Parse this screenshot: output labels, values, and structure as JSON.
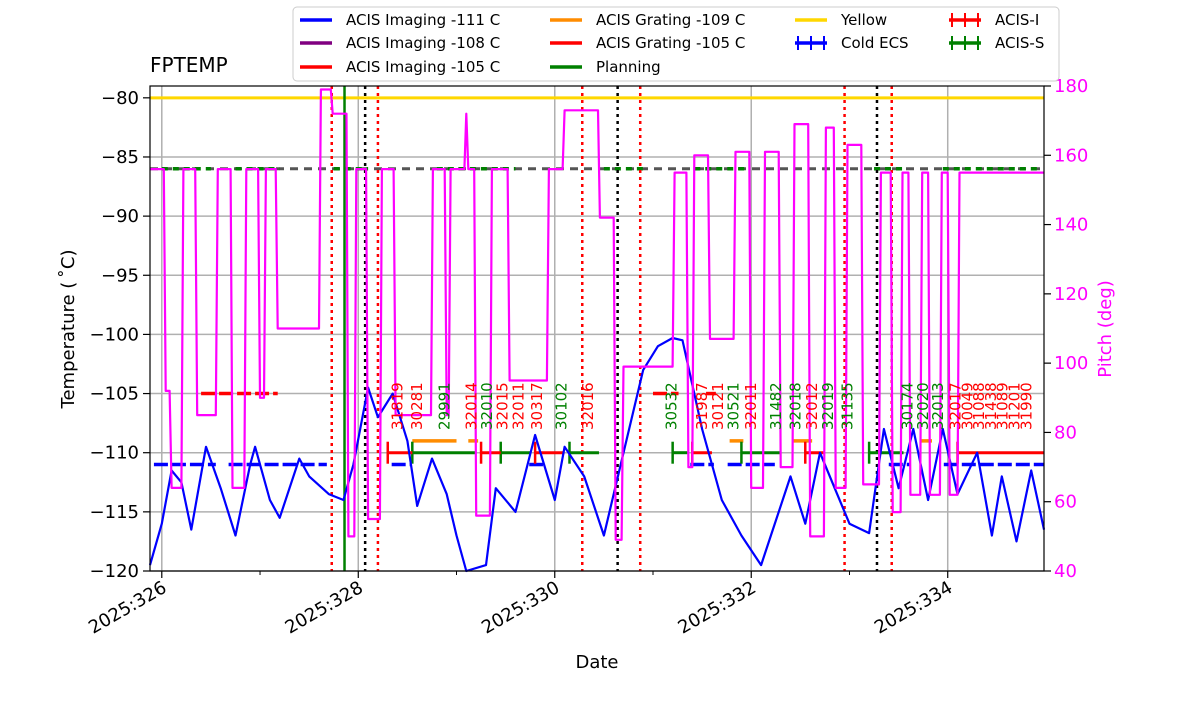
{
  "chart_data": {
    "type": "line",
    "title": "FPTEMP",
    "xlabel": "Date",
    "ylabel": "Temperature ($^\\circ$C)",
    "ylabel_display": "Temperature ( ˚C)",
    "y2label": "Pitch (deg)",
    "xlim": [
      325.88,
      334.98
    ],
    "ylim": [
      -120,
      -79
    ],
    "y2lim": [
      40,
      180
    ],
    "xticks": [
      {
        "value": 326,
        "label": "2025:326"
      },
      {
        "value": 328,
        "label": "2025:328"
      },
      {
        "value": 330,
        "label": "2025:330"
      },
      {
        "value": 332,
        "label": "2025:332"
      },
      {
        "value": 334,
        "label": "2025:334"
      }
    ],
    "yticks": [
      -120,
      -115,
      -110,
      -105,
      -100,
      -95,
      -90,
      -85,
      -80
    ],
    "yticklabels": [
      "−120",
      "−115",
      "−110",
      "−105",
      "−100",
      "−95",
      "−90",
      "−85",
      "−80"
    ],
    "y2ticks": [
      40,
      60,
      80,
      100,
      120,
      140,
      160,
      180
    ],
    "grid": true,
    "colors": {
      "blue": "#0000ff",
      "purple": "#800080",
      "red": "#ff0000",
      "orange": "#ff8c00",
      "green": "#008000",
      "yellow": "#ffd700",
      "magenta": "#ff00ff",
      "black": "#000000",
      "gray": "#555555"
    },
    "legend": {
      "placement": "top",
      "entries": [
        {
          "label": "ACIS Imaging -111 C",
          "color": "#0000ff",
          "style": "line"
        },
        {
          "label": "ACIS Imaging -108 C",
          "color": "#800080",
          "style": "line"
        },
        {
          "label": "ACIS Imaging -105 C",
          "color": "#ff0000",
          "style": "line"
        },
        {
          "label": "ACIS Grating -109 C",
          "color": "#ff8c00",
          "style": "line"
        },
        {
          "label": "ACIS Grating -105 C",
          "color": "#ff0000",
          "style": "line"
        },
        {
          "label": "Planning",
          "color": "#008000",
          "style": "line"
        },
        {
          "label": "Yellow",
          "color": "#ffd700",
          "style": "line"
        },
        {
          "label": "Cold ECS",
          "color": "#0000ff",
          "style": "errorbar"
        },
        {
          "label": "ACIS-I",
          "color": "#ff0000",
          "style": "errorbar"
        },
        {
          "label": "ACIS-S",
          "color": "#008000",
          "style": "errorbar"
        }
      ]
    },
    "series": [
      {
        "name": "FPTEMP",
        "axis": "left",
        "color": "#0000ff",
        "points": [
          [
            325.88,
            -119.5
          ],
          [
            326.0,
            -116
          ],
          [
            326.1,
            -111.5
          ],
          [
            326.2,
            -112.5
          ],
          [
            326.3,
            -116.5
          ],
          [
            326.45,
            -109.5
          ],
          [
            326.6,
            -113
          ],
          [
            326.75,
            -117
          ],
          [
            326.9,
            -111
          ],
          [
            326.95,
            -109.5
          ],
          [
            327.1,
            -114
          ],
          [
            327.2,
            -115.5
          ],
          [
            327.3,
            -113
          ],
          [
            327.4,
            -110.5
          ],
          [
            327.5,
            -112
          ],
          [
            327.7,
            -113.5
          ],
          [
            327.85,
            -114
          ],
          [
            327.95,
            -111
          ],
          [
            328.1,
            -104.5
          ],
          [
            328.2,
            -107
          ],
          [
            328.35,
            -105
          ],
          [
            328.5,
            -109
          ],
          [
            328.6,
            -114.5
          ],
          [
            328.75,
            -110.5
          ],
          [
            328.9,
            -113.5
          ],
          [
            329.0,
            -117
          ],
          [
            329.1,
            -120
          ],
          [
            329.3,
            -119.5
          ],
          [
            329.4,
            -113
          ],
          [
            329.6,
            -115
          ],
          [
            329.8,
            -108.5
          ],
          [
            330.0,
            -114
          ],
          [
            330.1,
            -109.5
          ],
          [
            330.3,
            -112
          ],
          [
            330.5,
            -117
          ],
          [
            330.7,
            -110
          ],
          [
            330.9,
            -103
          ],
          [
            331.05,
            -101
          ],
          [
            331.2,
            -100.3
          ],
          [
            331.3,
            -100.5
          ],
          [
            331.5,
            -108
          ],
          [
            331.7,
            -114
          ],
          [
            331.9,
            -117
          ],
          [
            332.1,
            -119.5
          ],
          [
            332.2,
            -117
          ],
          [
            332.4,
            -112
          ],
          [
            332.55,
            -116
          ],
          [
            332.7,
            -110
          ],
          [
            332.85,
            -113
          ],
          [
            333.0,
            -116
          ],
          [
            333.2,
            -116.8
          ],
          [
            333.35,
            -108
          ],
          [
            333.5,
            -113
          ],
          [
            333.65,
            -108
          ],
          [
            333.8,
            -114
          ],
          [
            333.95,
            -108
          ],
          [
            334.1,
            -113.5
          ],
          [
            334.3,
            -110
          ],
          [
            334.45,
            -117
          ],
          [
            334.55,
            -112
          ],
          [
            334.7,
            -117.5
          ],
          [
            334.85,
            -111.5
          ],
          [
            334.98,
            -116.5
          ]
        ]
      },
      {
        "name": "Pitch",
        "axis": "right",
        "color": "#ff00ff",
        "points": [
          [
            325.88,
            156
          ],
          [
            326.02,
            156
          ],
          [
            326.04,
            92
          ],
          [
            326.08,
            92
          ],
          [
            326.1,
            64
          ],
          [
            326.2,
            64
          ],
          [
            326.22,
            156
          ],
          [
            326.34,
            156
          ],
          [
            326.36,
            85
          ],
          [
            326.55,
            85
          ],
          [
            326.57,
            156
          ],
          [
            326.7,
            156
          ],
          [
            326.72,
            64
          ],
          [
            326.84,
            64
          ],
          [
            326.86,
            156
          ],
          [
            326.98,
            156
          ],
          [
            327.0,
            90
          ],
          [
            327.04,
            90
          ],
          [
            327.06,
            156
          ],
          [
            327.16,
            156
          ],
          [
            327.18,
            110
          ],
          [
            327.6,
            110
          ],
          [
            327.62,
            179
          ],
          [
            327.72,
            179
          ],
          [
            327.74,
            172
          ],
          [
            327.88,
            172
          ],
          [
            327.9,
            50
          ],
          [
            327.96,
            50
          ],
          [
            327.98,
            156
          ],
          [
            328.08,
            156
          ],
          [
            328.1,
            55
          ],
          [
            328.22,
            55
          ],
          [
            328.24,
            156
          ],
          [
            328.36,
            156
          ],
          [
            328.38,
            85
          ],
          [
            328.74,
            85
          ],
          [
            328.76,
            156
          ],
          [
            328.88,
            156
          ],
          [
            328.9,
            85
          ],
          [
            328.92,
            85
          ],
          [
            328.94,
            156
          ],
          [
            329.08,
            156
          ],
          [
            329.1,
            172
          ],
          [
            329.12,
            156
          ],
          [
            329.18,
            156
          ],
          [
            329.2,
            56
          ],
          [
            329.34,
            56
          ],
          [
            329.36,
            156
          ],
          [
            329.52,
            156
          ],
          [
            329.54,
            95
          ],
          [
            329.92,
            95
          ],
          [
            329.94,
            156
          ],
          [
            330.08,
            156
          ],
          [
            330.1,
            173
          ],
          [
            330.44,
            173
          ],
          [
            330.46,
            142
          ],
          [
            330.6,
            142
          ],
          [
            330.62,
            49
          ],
          [
            330.68,
            49
          ],
          [
            330.7,
            99
          ],
          [
            331.2,
            99
          ],
          [
            331.22,
            155
          ],
          [
            331.34,
            155
          ],
          [
            331.36,
            70
          ],
          [
            331.4,
            70
          ],
          [
            331.42,
            160
          ],
          [
            331.56,
            160
          ],
          [
            331.58,
            107
          ],
          [
            331.82,
            107
          ],
          [
            331.84,
            161
          ],
          [
            331.98,
            161
          ],
          [
            332.0,
            64
          ],
          [
            332.12,
            64
          ],
          [
            332.14,
            161
          ],
          [
            332.28,
            161
          ],
          [
            332.3,
            70
          ],
          [
            332.42,
            70
          ],
          [
            332.44,
            169
          ],
          [
            332.58,
            169
          ],
          [
            332.6,
            50
          ],
          [
            332.74,
            50
          ],
          [
            332.76,
            168
          ],
          [
            332.84,
            168
          ],
          [
            332.86,
            64
          ],
          [
            332.96,
            64
          ],
          [
            332.98,
            163
          ],
          [
            333.12,
            163
          ],
          [
            333.14,
            65
          ],
          [
            333.3,
            65
          ],
          [
            333.32,
            155
          ],
          [
            333.42,
            155
          ],
          [
            333.44,
            57
          ],
          [
            333.52,
            57
          ],
          [
            333.54,
            155
          ],
          [
            333.6,
            155
          ],
          [
            333.62,
            62
          ],
          [
            333.72,
            62
          ],
          [
            333.74,
            155
          ],
          [
            333.8,
            155
          ],
          [
            333.82,
            62
          ],
          [
            333.92,
            62
          ],
          [
            333.94,
            155
          ],
          [
            334.0,
            155
          ],
          [
            334.02,
            62
          ],
          [
            334.1,
            62
          ],
          [
            334.12,
            155
          ],
          [
            334.98,
            155
          ]
        ]
      }
    ],
    "hlines": [
      {
        "name": "Yellow",
        "y": -80,
        "color": "#ffd700"
      },
      {
        "name": "Planning",
        "y": -86,
        "color": "#008000",
        "style": "dashed"
      }
    ],
    "blue_limit": [
      [
        325.92,
        326.55
      ],
      [
        326.68,
        327.68
      ],
      [
        328.34,
        328.54
      ],
      [
        329.74,
        329.88
      ],
      [
        331.38,
        331.62
      ],
      [
        331.76,
        332.24
      ],
      [
        333.4,
        333.62
      ],
      [
        333.96,
        334.98
      ]
    ],
    "red_limit": [
      [
        326.4,
        327.18
      ],
      [
        331.0,
        331.26
      ],
      [
        331.54,
        331.64
      ]
    ],
    "planning_segments": [
      [
        326.0,
        326.5
      ],
      [
        326.75,
        327.2
      ],
      [
        327.75,
        328.1
      ],
      [
        328.8,
        329.6
      ],
      [
        330.5,
        330.93
      ],
      [
        331.42,
        331.95
      ],
      [
        333.25,
        333.55
      ],
      [
        333.95,
        334.95
      ]
    ],
    "acis_i_segments": [
      [
        328.3,
        328.55
      ],
      [
        329.25,
        329.45
      ],
      [
        329.8,
        330.1
      ],
      [
        331.4,
        331.6
      ],
      [
        332.55,
        332.75
      ],
      [
        334.1,
        334.98
      ]
    ],
    "acis_s_segments": [
      [
        328.55,
        329.2
      ],
      [
        329.45,
        329.75
      ],
      [
        330.15,
        330.45
      ],
      [
        331.2,
        331.35
      ],
      [
        331.9,
        332.3
      ],
      [
        333.2,
        333.55
      ]
    ],
    "orange_segments": [
      [
        328.55,
        329.0
      ],
      [
        329.12,
        329.22
      ],
      [
        331.78,
        331.92
      ],
      [
        332.42,
        332.62
      ],
      [
        333.72,
        333.84
      ]
    ],
    "vlines": [
      {
        "x": 327.73,
        "color": "#ff0000",
        "style": "dotted"
      },
      {
        "x": 327.86,
        "color": "#008000",
        "style": "solid"
      },
      {
        "x": 328.07,
        "color": "#000000",
        "style": "dotted"
      },
      {
        "x": 328.2,
        "color": "#ff0000",
        "style": "dotted"
      },
      {
        "x": 330.28,
        "color": "#ff0000",
        "style": "dotted"
      },
      {
        "x": 330.64,
        "color": "#000000",
        "style": "dotted"
      },
      {
        "x": 330.87,
        "color": "#ff0000",
        "style": "dotted"
      },
      {
        "x": 332.95,
        "color": "#ff0000",
        "style": "dotted"
      },
      {
        "x": 333.28,
        "color": "#000000",
        "style": "dotted"
      },
      {
        "x": 333.43,
        "color": "#ff0000",
        "style": "dotted"
      }
    ],
    "obsids": [
      {
        "x": 328.4,
        "text": "31819",
        "color": "#ff0000"
      },
      {
        "x": 328.6,
        "text": "30281",
        "color": "#ff0000"
      },
      {
        "x": 328.88,
        "text": "29991",
        "color": "#008000"
      },
      {
        "x": 329.15,
        "text": "32014",
        "color": "#ff0000"
      },
      {
        "x": 329.31,
        "text": "32010",
        "color": "#008000"
      },
      {
        "x": 329.47,
        "text": "32015",
        "color": "#ff0000"
      },
      {
        "x": 329.63,
        "text": "32011",
        "color": "#ff0000"
      },
      {
        "x": 329.82,
        "text": "30317",
        "color": "#ff0000"
      },
      {
        "x": 330.07,
        "text": "30102",
        "color": "#008000"
      },
      {
        "x": 330.34,
        "text": "32016",
        "color": "#ff0000"
      },
      {
        "x": 331.19,
        "text": "30532",
        "color": "#008000"
      },
      {
        "x": 331.5,
        "text": "31987",
        "color": "#ff0000"
      },
      {
        "x": 331.66,
        "text": "30121",
        "color": "#ff0000"
      },
      {
        "x": 331.82,
        "text": "30521",
        "color": "#008000"
      },
      {
        "x": 332.0,
        "text": "32011",
        "color": "#ff0000"
      },
      {
        "x": 332.25,
        "text": "31482",
        "color": "#008000"
      },
      {
        "x": 332.45,
        "text": "32018",
        "color": "#008000"
      },
      {
        "x": 332.62,
        "text": "32012",
        "color": "#ff0000"
      },
      {
        "x": 332.78,
        "text": "32019",
        "color": "#008000"
      },
      {
        "x": 332.98,
        "text": "31135",
        "color": "#008000"
      },
      {
        "x": 333.59,
        "text": "30174",
        "color": "#008000"
      },
      {
        "x": 333.75,
        "text": "32020",
        "color": "#008000"
      },
      {
        "x": 333.9,
        "text": "32013",
        "color": "#008000"
      },
      {
        "x": 334.08,
        "text": "32017",
        "color": "#ff0000"
      },
      {
        "x": 334.2,
        "text": "30049",
        "color": "#ff0000"
      },
      {
        "x": 334.32,
        "text": "31088",
        "color": "#ff0000"
      },
      {
        "x": 334.44,
        "text": "31438",
        "color": "#ff0000"
      },
      {
        "x": 334.56,
        "text": "31089",
        "color": "#ff0000"
      },
      {
        "x": 334.68,
        "text": "31201",
        "color": "#ff0000"
      },
      {
        "x": 334.8,
        "text": "31990",
        "color": "#ff0000"
      }
    ]
  }
}
